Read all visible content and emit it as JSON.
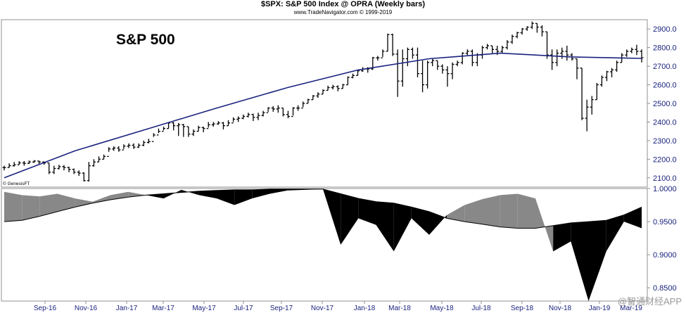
{
  "header": {
    "title": "$SPX:  S&P 500 Index @ OPRA  (Weekly bars)",
    "subtitle": "www.TradeNavigator.com © 1999-2019"
  },
  "labels": {
    "chart_label": "S&P 500",
    "small_label": "© GenesisFT",
    "watermark": "@智通财经APP"
  },
  "colors": {
    "price_bars": "#000000",
    "moving_average": "#1a237e",
    "area_fill_above": "#888888",
    "area_fill_below": "#000000",
    "axis_text": "#1a237e"
  },
  "chart_data": [
    {
      "type": "ohlc",
      "title": "S&P 500",
      "x_tick_labels": [
        "Sep-16",
        "Nov-16",
        "Jan-17",
        "Mar-17",
        "May-17",
        "Jul-17",
        "Sep-17",
        "Nov-17",
        "Jan-18",
        "Mar-18",
        "May-18",
        "Jul-18",
        "Sep-18",
        "Nov-18",
        "Jan-19",
        "Mar-19"
      ],
      "y_ticks": [
        2100,
        2200,
        2300,
        2400,
        2500,
        2600,
        2700,
        2800,
        2900
      ],
      "ylim": [
        2050,
        2950
      ],
      "series": [
        {
          "kind": "ohlc-weekly",
          "close": [
            2155,
            2165,
            2170,
            2180,
            2178,
            2185,
            2190,
            2185,
            2180,
            2130,
            2150,
            2160,
            2155,
            2145,
            2130,
            2125,
            2085,
            2165,
            2185,
            2200,
            2215,
            2255,
            2260,
            2250,
            2270,
            2275,
            2265,
            2275,
            2290,
            2295,
            2330,
            2350,
            2365,
            2395,
            2380,
            2385,
            2375,
            2335,
            2350,
            2370,
            2365,
            2385,
            2390,
            2395,
            2380,
            2395,
            2415,
            2420,
            2430,
            2440,
            2425,
            2435,
            2450,
            2475,
            2470,
            2475,
            2440,
            2430,
            2475,
            2475,
            2500,
            2520,
            2540,
            2550,
            2570,
            2585,
            2590,
            2580,
            2600,
            2640,
            2650,
            2675,
            2685,
            2685,
            2745,
            2745,
            2780,
            2870,
            2765,
            2620,
            2740,
            2790,
            2760,
            2660,
            2600,
            2720,
            2730,
            2700,
            2680,
            2660,
            2710,
            2720,
            2770,
            2780,
            2720,
            2760,
            2800,
            2810,
            2790,
            2780,
            2800,
            2830,
            2860,
            2880,
            2900,
            2910,
            2930,
            2910,
            2885,
            2760,
            2720,
            2770,
            2780,
            2760,
            2740,
            2690,
            2420,
            2480,
            2520,
            2600,
            2640,
            2670,
            2680,
            2720,
            2760,
            2780,
            2790,
            2780,
            2745
          ],
          "high": [
            2165,
            2178,
            2185,
            2190,
            2190,
            2193,
            2195,
            2192,
            2188,
            2180,
            2165,
            2170,
            2168,
            2160,
            2150,
            2140,
            2130,
            2185,
            2200,
            2215,
            2225,
            2265,
            2270,
            2270,
            2280,
            2285,
            2285,
            2285,
            2300,
            2310,
            2340,
            2365,
            2375,
            2400,
            2400,
            2395,
            2390,
            2375,
            2360,
            2380,
            2375,
            2400,
            2400,
            2405,
            2400,
            2410,
            2425,
            2430,
            2440,
            2450,
            2445,
            2450,
            2460,
            2480,
            2485,
            2490,
            2475,
            2460,
            2480,
            2490,
            2510,
            2525,
            2545,
            2560,
            2575,
            2595,
            2600,
            2597,
            2605,
            2645,
            2660,
            2680,
            2695,
            2695,
            2750,
            2755,
            2790,
            2875,
            2875,
            2790,
            2790,
            2800,
            2800,
            2800,
            2730,
            2730,
            2740,
            2730,
            2710,
            2700,
            2720,
            2730,
            2775,
            2790,
            2790,
            2770,
            2810,
            2820,
            2810,
            2810,
            2810,
            2840,
            2870,
            2885,
            2905,
            2915,
            2940,
            2930,
            2920,
            2885,
            2790,
            2790,
            2800,
            2810,
            2770,
            2740,
            2690,
            2520,
            2540,
            2610,
            2650,
            2675,
            2690,
            2730,
            2770,
            2790,
            2800,
            2815,
            2790
          ],
          "low": [
            2140,
            2155,
            2160,
            2170,
            2165,
            2175,
            2180,
            2175,
            2170,
            2120,
            2120,
            2145,
            2140,
            2130,
            2120,
            2110,
            2080,
            2080,
            2160,
            2185,
            2200,
            2240,
            2245,
            2240,
            2255,
            2260,
            2255,
            2260,
            2270,
            2285,
            2320,
            2340,
            2355,
            2365,
            2355,
            2325,
            2320,
            2320,
            2325,
            2350,
            2345,
            2370,
            2375,
            2385,
            2360,
            2380,
            2400,
            2400,
            2415,
            2425,
            2405,
            2410,
            2430,
            2455,
            2455,
            2450,
            2430,
            2420,
            2435,
            2460,
            2480,
            2500,
            2520,
            2530,
            2550,
            2570,
            2575,
            2565,
            2580,
            2600,
            2635,
            2650,
            2670,
            2665,
            2680,
            2730,
            2750,
            2780,
            2755,
            2535,
            2590,
            2700,
            2740,
            2640,
            2560,
            2580,
            2700,
            2680,
            2660,
            2590,
            2630,
            2700,
            2710,
            2760,
            2700,
            2700,
            2740,
            2790,
            2770,
            2760,
            2770,
            2790,
            2820,
            2850,
            2870,
            2890,
            2900,
            2880,
            2860,
            2740,
            2680,
            2700,
            2740,
            2730,
            2730,
            2630,
            2410,
            2350,
            2440,
            2520,
            2590,
            2620,
            2640,
            2670,
            2720,
            2750,
            2770,
            2760,
            2720
          ]
        },
        {
          "name": "",
          "kind": "moving-average",
          "values": [
            2100,
            2245,
            2360,
            2475,
            2585,
            2680,
            2740,
            2770,
            2750,
            2742
          ]
        }
      ]
    },
    {
      "type": "area",
      "title": "",
      "y_ticks": [
        "0.8500",
        "0.9000",
        "0.9500",
        "1.0000"
      ],
      "ylim": [
        0.83,
        1.0
      ],
      "baseline_series": {
        "kind": "line",
        "values": [
          0.95,
          0.952,
          0.958,
          0.965,
          0.972,
          0.978,
          0.983,
          0.987,
          0.99,
          0.992,
          0.994,
          0.996,
          0.997,
          0.998,
          0.998,
          0.999,
          0.999,
          0.999,
          0.999,
          0.992,
          0.985,
          0.98,
          0.978,
          0.972,
          0.965,
          0.955,
          0.95,
          0.946,
          0.942,
          0.94,
          0.94,
          0.944,
          0.948,
          0.95,
          0.952,
          0.96,
          0.972
        ]
      },
      "ratio_series": {
        "kind": "area",
        "values": [
          0.995,
          0.99,
          0.988,
          0.992,
          0.985,
          0.98,
          0.99,
          0.995,
          0.99,
          0.985,
          0.998,
          0.99,
          0.985,
          0.975,
          0.985,
          0.992,
          0.997,
          0.998,
          0.999,
          0.915,
          0.955,
          0.945,
          0.905,
          0.955,
          0.93,
          0.96,
          0.975,
          0.984,
          0.99,
          0.992,
          0.985,
          0.905,
          0.92,
          0.83,
          0.905,
          0.95,
          0.94
        ]
      }
    }
  ]
}
